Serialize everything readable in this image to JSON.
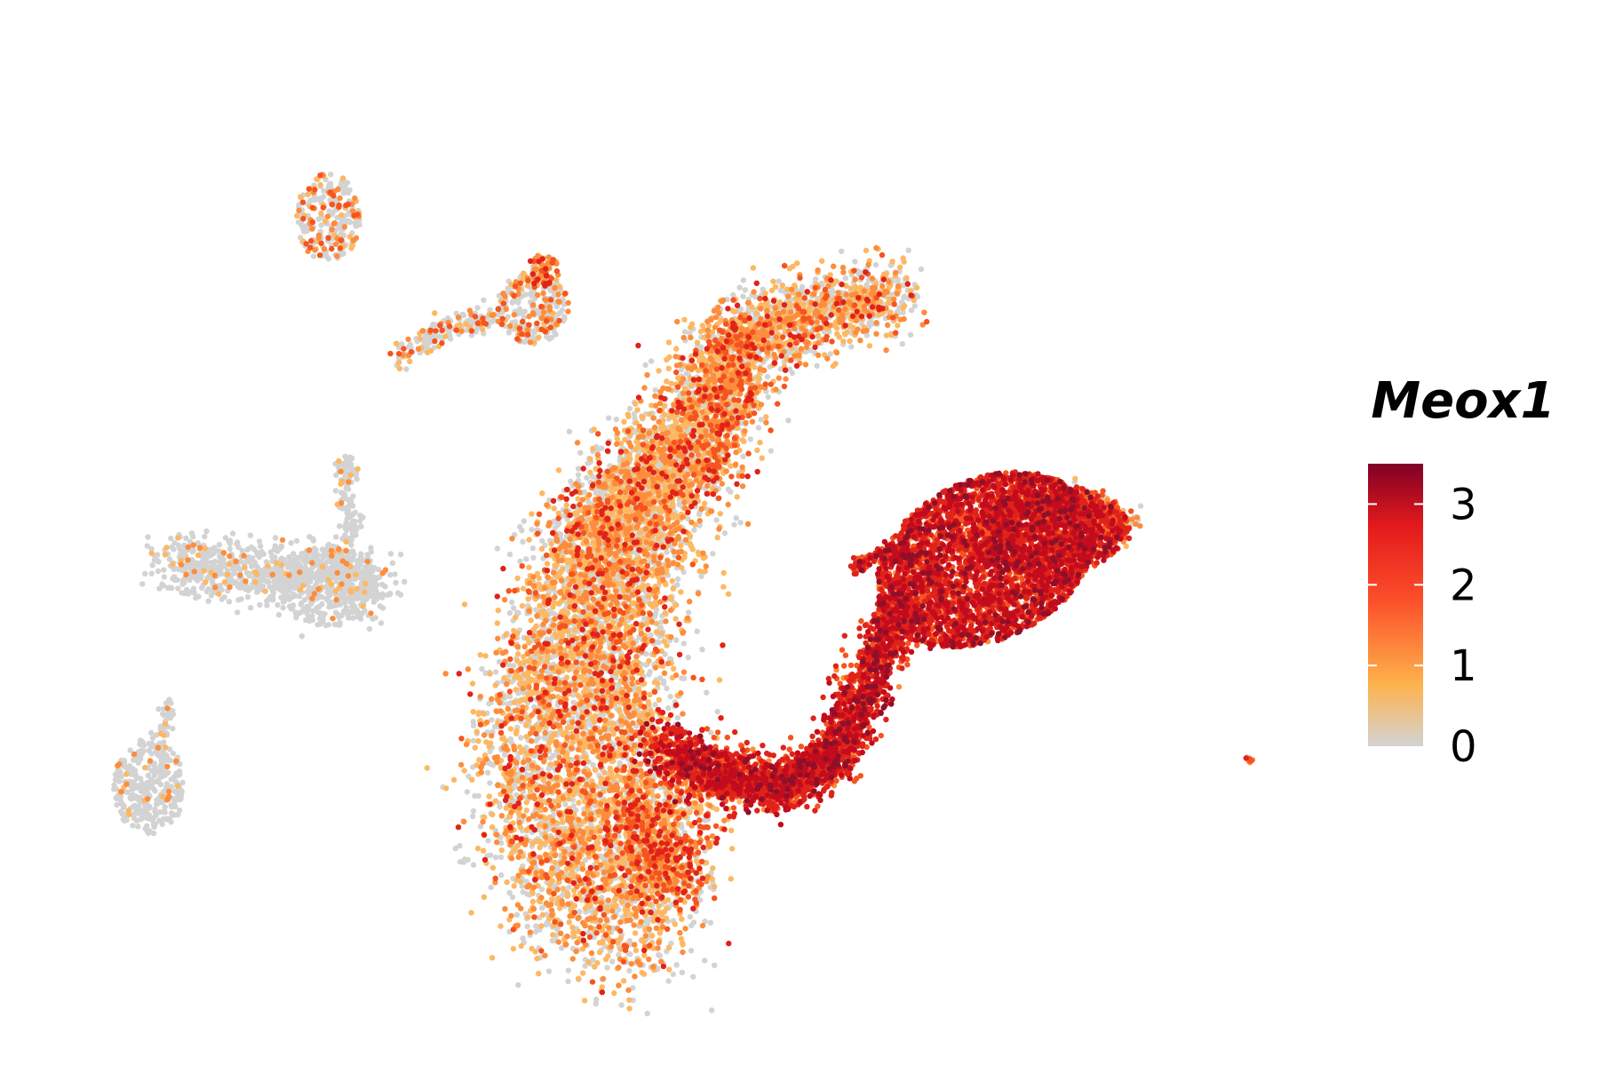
{
  "chart_data": {
    "type": "scatter",
    "title": "",
    "xlabel": "",
    "ylabel": "",
    "grid": false,
    "axes_visible": false,
    "legend_position": "right",
    "color_variable": "Meox1",
    "colorbar": {
      "title": "Meox1",
      "range": [
        0,
        3.5
      ],
      "ticks": [
        0,
        1,
        2,
        3
      ],
      "tick_labels": [
        "0",
        "1",
        "2",
        "3"
      ],
      "colors": [
        "#d3d3d3",
        "#feb24c",
        "#fc4e2a",
        "#e31a1c",
        "#800026"
      ]
    },
    "clusters": [
      {
        "name": "top-left-small-island",
        "expression_level": "low"
      },
      {
        "name": "upper-middle-island",
        "expression_level": "low-medium"
      },
      {
        "name": "left-elongated-island",
        "expression_level": "very-low"
      },
      {
        "name": "bottom-left-island",
        "expression_level": "very-low"
      },
      {
        "name": "central-arc",
        "expression_level": "medium"
      },
      {
        "name": "right-lobe",
        "expression_level": "high"
      },
      {
        "name": "far-right-point",
        "expression_level": "medium"
      }
    ]
  }
}
